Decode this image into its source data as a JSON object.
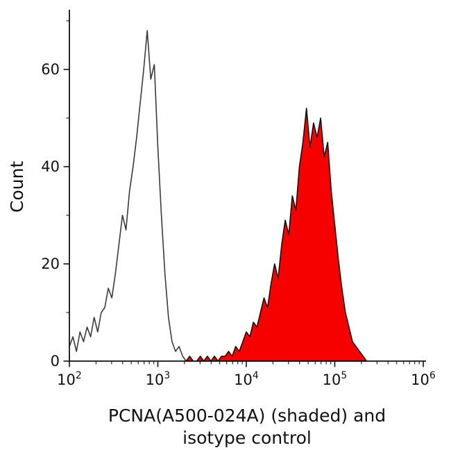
{
  "chart_data": {
    "type": "area",
    "subtype": "flow-cytometry-histogram-overlay",
    "title": "",
    "xlabel_line1": "PCNA(A500-024A) (shaded) and",
    "xlabel_line2": "isotype control",
    "ylabel": "Count",
    "x_scale": "log10",
    "x_tick_base": "10",
    "x_range_exponents": [
      2,
      6
    ],
    "x_major_tick_exponents": [
      2,
      3,
      4,
      5,
      6
    ],
    "y_range": [
      0,
      70
    ],
    "y_major_ticks": [
      0,
      20,
      40,
      60
    ],
    "y_minor_ticks": [
      10,
      30,
      50,
      70
    ],
    "grid": "off",
    "legend": "none",
    "bins": {
      "log10_start": 2.0,
      "log10_step": 0.04
    },
    "colors": {
      "axis": "#111111",
      "shaded_fill": "#f70000",
      "open_stroke": "#3a3a3a",
      "shaded_stroke": "#111111"
    },
    "series": [
      {
        "name": "isotype control",
        "style": "open",
        "stroke": "#3a3a3a",
        "fill": "none",
        "peak_x_approx": 750,
        "peak_count_approx": 68,
        "values": [
          3,
          5,
          2,
          6,
          4,
          7,
          5,
          9,
          6,
          10,
          11,
          15,
          13,
          18,
          24,
          30,
          27,
          35,
          40,
          46,
          53,
          60,
          68,
          58,
          61,
          44,
          30,
          18,
          9,
          4,
          2,
          3,
          1,
          0,
          0,
          0,
          0,
          0,
          0,
          0,
          0,
          0,
          0,
          0,
          0,
          0,
          0,
          0,
          0,
          0,
          0,
          0,
          0,
          0,
          0,
          0,
          0,
          0,
          0,
          0,
          0,
          0,
          0,
          0,
          0,
          0,
          0,
          0,
          0,
          0,
          0,
          0,
          0,
          0,
          0,
          0,
          0,
          0,
          0,
          0,
          0,
          0,
          0,
          0,
          0,
          0,
          0,
          0,
          0,
          0,
          0,
          0,
          0,
          0,
          0,
          0,
          0,
          0,
          0,
          0
        ]
      },
      {
        "name": "PCNA(A500-024A)",
        "style": "shaded",
        "stroke": "#111111",
        "fill": "#f70000",
        "peak_x_approx": 48000,
        "peak_count_approx": 52,
        "values": [
          0,
          0,
          0,
          0,
          0,
          0,
          0,
          0,
          0,
          0,
          0,
          0,
          0,
          0,
          0,
          0,
          0,
          0,
          0,
          0,
          0,
          0,
          0,
          0,
          0,
          0,
          0,
          0,
          0,
          0,
          0,
          0,
          0,
          0,
          1,
          0,
          0,
          1,
          0,
          1,
          0,
          1,
          0,
          1,
          1,
          2,
          1,
          3,
          2,
          4,
          6,
          5,
          8,
          7,
          10,
          13,
          11,
          16,
          20,
          17,
          24,
          29,
          26,
          34,
          31,
          40,
          45,
          52,
          44,
          49,
          46,
          50,
          42,
          45,
          35,
          28,
          21,
          15,
          10,
          7,
          4,
          3,
          2,
          1,
          0,
          0,
          0,
          0,
          0,
          0,
          0,
          0,
          0,
          0,
          0,
          0,
          0,
          0,
          0,
          0
        ]
      }
    ]
  }
}
